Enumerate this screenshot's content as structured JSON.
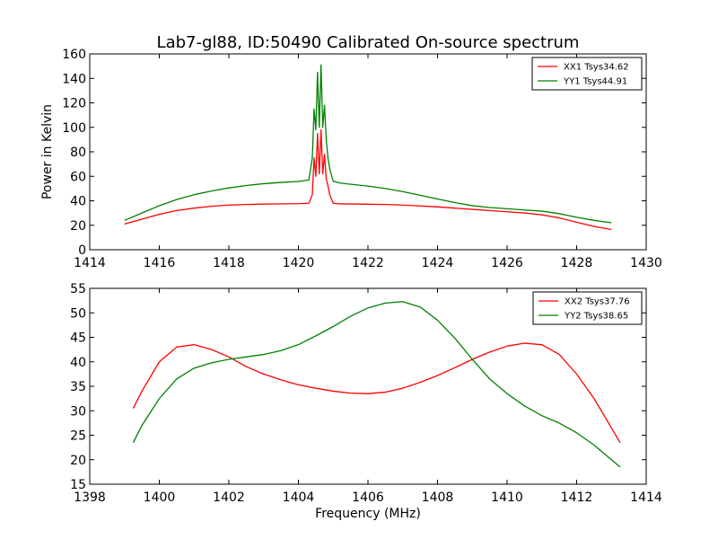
{
  "figure_title": "Lab7-gl88, ID:50490 Calibrated On-source spectrum",
  "chart_data": [
    {
      "type": "line",
      "xlabel": "",
      "ylabel": "Power in Kelvin",
      "xlim": [
        1414,
        1430
      ],
      "ylim": [
        0,
        160
      ],
      "xticks": [
        "1414",
        "1416",
        "1418",
        "1420",
        "1422",
        "1424",
        "1426",
        "1428",
        "1430"
      ],
      "yticks": [
        "0",
        "20",
        "40",
        "60",
        "80",
        "100",
        "120",
        "140",
        "160"
      ],
      "grid": false,
      "legend_position": "top-right",
      "series": [
        {
          "name": "XX1 Tsys34.62",
          "color": "#ff0000",
          "x": [
            1415.0,
            1415.5,
            1416.0,
            1416.5,
            1417.0,
            1417.5,
            1418.0,
            1418.5,
            1419.0,
            1419.5,
            1420.0,
            1420.3,
            1420.4,
            1420.45,
            1420.5,
            1420.55,
            1420.6,
            1420.65,
            1420.7,
            1420.75,
            1420.8,
            1420.85,
            1420.9,
            1421.0,
            1421.2,
            1421.5,
            1422.0,
            1422.5,
            1423.0,
            1423.5,
            1424.0,
            1424.5,
            1425.0,
            1425.5,
            1426.0,
            1426.5,
            1427.0,
            1427.5,
            1428.0,
            1428.5,
            1429.0
          ],
          "y": [
            21,
            25,
            29,
            32,
            34,
            35.5,
            36.5,
            37,
            37.3,
            37.5,
            37.6,
            38,
            45,
            75,
            60,
            95,
            62,
            98,
            62,
            78,
            58,
            52,
            45,
            38,
            37.5,
            37.4,
            37.2,
            37,
            36.5,
            35.8,
            35,
            34,
            33,
            32,
            31,
            30,
            28.5,
            26,
            22.5,
            19,
            16.5
          ]
        },
        {
          "name": "YY1 Tsys44.91",
          "color": "#008000",
          "x": [
            1415.0,
            1415.5,
            1416.0,
            1416.5,
            1417.0,
            1417.5,
            1418.0,
            1418.5,
            1419.0,
            1419.5,
            1420.0,
            1420.3,
            1420.4,
            1420.45,
            1420.5,
            1420.55,
            1420.6,
            1420.65,
            1420.7,
            1420.75,
            1420.8,
            1420.85,
            1420.9,
            1421.0,
            1421.2,
            1421.5,
            1422.0,
            1422.5,
            1423.0,
            1423.5,
            1424.0,
            1424.5,
            1425.0,
            1425.5,
            1426.0,
            1426.5,
            1427.0,
            1427.5,
            1428.0,
            1428.5,
            1429.0
          ],
          "y": [
            24,
            30,
            36,
            41,
            45,
            48,
            50.5,
            52.5,
            54,
            55,
            55.8,
            57,
            75,
            115,
            98,
            145,
            100,
            151,
            100,
            118,
            90,
            75,
            66,
            56,
            54.5,
            53.5,
            52,
            50,
            47.5,
            44.5,
            41.5,
            38.5,
            36,
            34.5,
            33.5,
            32.5,
            31.5,
            29.5,
            26.5,
            24,
            22
          ]
        }
      ]
    },
    {
      "type": "line",
      "xlabel": "Frequency (MHz)",
      "ylabel": "",
      "xlim": [
        1398,
        1414
      ],
      "ylim": [
        15,
        55
      ],
      "xticks": [
        "1398",
        "1400",
        "1402",
        "1404",
        "1406",
        "1408",
        "1410",
        "1412",
        "1414"
      ],
      "yticks": [
        "15",
        "20",
        "25",
        "30",
        "35",
        "40",
        "45",
        "50",
        "55"
      ],
      "grid": false,
      "legend_position": "top-right",
      "series": [
        {
          "name": "XX2 Tsys37.76",
          "color": "#ff0000",
          "x": [
            1399.25,
            1399.5,
            1400.0,
            1400.5,
            1401.0,
            1401.5,
            1402.0,
            1402.5,
            1403.0,
            1403.5,
            1404.0,
            1404.5,
            1405.0,
            1405.5,
            1406.0,
            1406.5,
            1407.0,
            1407.5,
            1408.0,
            1408.5,
            1409.0,
            1409.5,
            1410.0,
            1410.5,
            1411.0,
            1411.5,
            1412.0,
            1412.5,
            1413.0,
            1413.25
          ],
          "y": [
            30.5,
            34,
            40,
            43,
            43.5,
            42.5,
            41,
            39,
            37.5,
            36.3,
            35.3,
            34.6,
            34,
            33.6,
            33.5,
            33.8,
            34.6,
            35.8,
            37.2,
            38.8,
            40.5,
            42,
            43.2,
            43.8,
            43.5,
            41.5,
            37.5,
            32.5,
            26.5,
            23.5
          ]
        },
        {
          "name": "YY2 Tsys38.65",
          "color": "#008000",
          "x": [
            1399.25,
            1399.5,
            1400.0,
            1400.5,
            1401.0,
            1401.5,
            1402.0,
            1402.5,
            1403.0,
            1403.5,
            1404.0,
            1404.5,
            1405.0,
            1405.5,
            1406.0,
            1406.5,
            1407.0,
            1407.5,
            1408.0,
            1408.5,
            1409.0,
            1409.5,
            1410.0,
            1410.5,
            1411.0,
            1411.5,
            1412.0,
            1412.5,
            1413.0,
            1413.25
          ],
          "y": [
            23.5,
            27,
            32.5,
            36.5,
            38.7,
            39.8,
            40.5,
            41,
            41.5,
            42.3,
            43.5,
            45.3,
            47.2,
            49.3,
            51,
            52,
            52.3,
            51.2,
            48.5,
            44.8,
            40.5,
            36.5,
            33.5,
            31,
            29,
            27.5,
            25.5,
            23,
            20,
            18.5
          ]
        }
      ]
    }
  ]
}
